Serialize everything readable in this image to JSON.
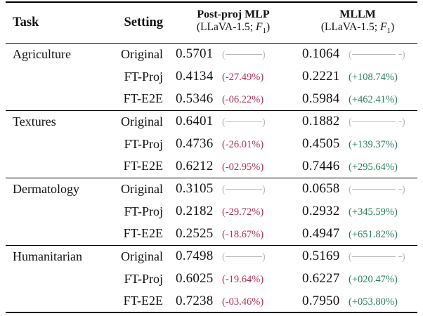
{
  "colors": {
    "negative": "#b03052",
    "positive": "#2a8157",
    "muted": "#b9b9b9",
    "rule": "#000000",
    "ink": "#111111"
  },
  "header": {
    "task": "Task",
    "setting": "Setting",
    "col_mlp": {
      "title": "Post-proj MLP",
      "sub_prefix": "(LLaVA-1.5; ",
      "metric": "F",
      "metric_sub": "1",
      "sub_suffix": ")"
    },
    "col_mllm": {
      "title": "MLLM",
      "sub_prefix": "(LLaVA-1.5; ",
      "metric": "F",
      "metric_sub": "1",
      "sub_suffix": ")"
    }
  },
  "groups": [
    {
      "task": "Agriculture",
      "rows": [
        {
          "setting": "Original",
          "mlp_score": "0.5701",
          "mlp_delta": null,
          "mllm_score": "0.1064",
          "mllm_delta": null
        },
        {
          "setting": "FT-Proj",
          "mlp_score": "0.4134",
          "mlp_delta": "(-27.49%)",
          "mllm_score": "0.2221",
          "mllm_delta": "(+108.74%)"
        },
        {
          "setting": "FT-E2E",
          "mlp_score": "0.5346",
          "mlp_delta": "(-06.22%)",
          "mllm_score": "0.5984",
          "mllm_delta": "(+462.41%)"
        }
      ]
    },
    {
      "task": "Textures",
      "rows": [
        {
          "setting": "Original",
          "mlp_score": "0.6401",
          "mlp_delta": null,
          "mllm_score": "0.1882",
          "mllm_delta": null
        },
        {
          "setting": "FT-Proj",
          "mlp_score": "0.4736",
          "mlp_delta": "(-26.01%)",
          "mllm_score": "0.4505",
          "mllm_delta": "(+139.37%)"
        },
        {
          "setting": "FT-E2E",
          "mlp_score": "0.6212",
          "mlp_delta": "(-02.95%)",
          "mllm_score": "0.7446",
          "mllm_delta": "(+295.64%)"
        }
      ]
    },
    {
      "task": "Dermatology",
      "rows": [
        {
          "setting": "Original",
          "mlp_score": "0.3105",
          "mlp_delta": null,
          "mllm_score": "0.0658",
          "mllm_delta": null
        },
        {
          "setting": "FT-Proj",
          "mlp_score": "0.2182",
          "mlp_delta": "(-29.72%)",
          "mllm_score": "0.2932",
          "mllm_delta": "(+345.59%)"
        },
        {
          "setting": "FT-E2E",
          "mlp_score": "0.2525",
          "mlp_delta": "(-18.67%)",
          "mllm_score": "0.4947",
          "mllm_delta": "(+651.82%)"
        }
      ]
    },
    {
      "task": "Humanitarian",
      "rows": [
        {
          "setting": "Original",
          "mlp_score": "0.7498",
          "mlp_delta": null,
          "mllm_score": "0.5169",
          "mllm_delta": null
        },
        {
          "setting": "FT-Proj",
          "mlp_score": "0.6025",
          "mlp_delta": "(-19.64%)",
          "mllm_score": "0.6227",
          "mllm_delta": "(+020.47%)"
        },
        {
          "setting": "FT-E2E",
          "mlp_score": "0.7238",
          "mlp_delta": "(-03.46%)",
          "mllm_score": "0.7950",
          "mllm_delta": "(+053.80%)"
        }
      ]
    }
  ]
}
